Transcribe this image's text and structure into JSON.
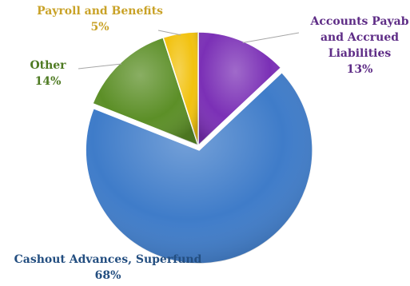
{
  "chart_data": {
    "type": "pie",
    "title": "",
    "slices": [
      {
        "label_lines": [
          "Accounts Payab",
          "and Accrued",
          "Liabilities"
        ],
        "percent_label": "13%",
        "value": 13,
        "color": "#7B30B6"
      },
      {
        "label_lines": [
          "Cashout Advances, Superfund"
        ],
        "percent_label": "68%",
        "value": 68,
        "color": "#3F7CC9"
      },
      {
        "label_lines": [
          "Other"
        ],
        "percent_label": "14%",
        "value": 14,
        "color": "#5C8F27"
      },
      {
        "label_lines": [
          "Payroll and Benefits"
        ],
        "percent_label": "5%",
        "value": 5,
        "color": "#F2C20F"
      }
    ],
    "label_colors": [
      "#5E2C86",
      "#234E80",
      "#4E7A22",
      "#C9A227"
    ],
    "start_angle": "12 o'clock",
    "direction": "clockwise",
    "legend": "none"
  }
}
